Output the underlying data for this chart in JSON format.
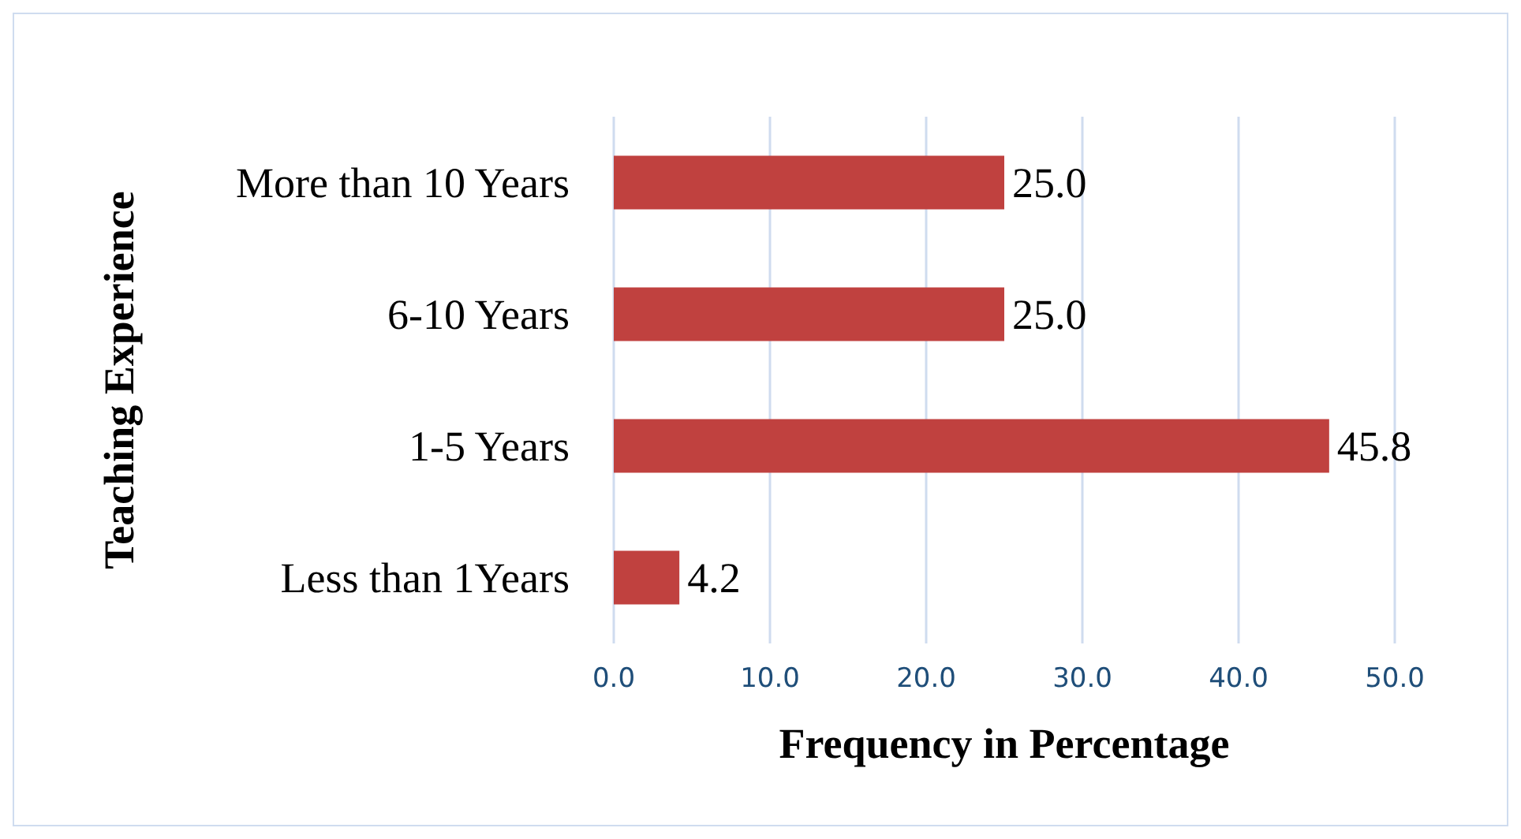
{
  "chart_data": {
    "type": "bar",
    "orientation": "horizontal",
    "xlabel": "Frequency in Percentage",
    "ylabel": "Teaching Experience",
    "categories": [
      "More than 10 Years",
      "6-10 Years",
      "1-5 Years",
      "Less than 1Years"
    ],
    "series": [
      {
        "color": "#c0413f",
        "values": [
          25.0,
          25.0,
          45.8,
          4.2
        ],
        "value_labels": [
          "25.0",
          "25.0",
          "45.8",
          "4.2"
        ]
      }
    ],
    "xlim": [
      0,
      50
    ],
    "xticks": [
      {
        "value": 0,
        "label": "0.0"
      },
      {
        "value": 10,
        "label": "10.0"
      },
      {
        "value": 20,
        "label": "20.0"
      },
      {
        "value": 30,
        "label": "30.0"
      },
      {
        "value": 40,
        "label": "40.0"
      },
      {
        "value": 50,
        "label": "50.0"
      }
    ],
    "grid": "x"
  }
}
